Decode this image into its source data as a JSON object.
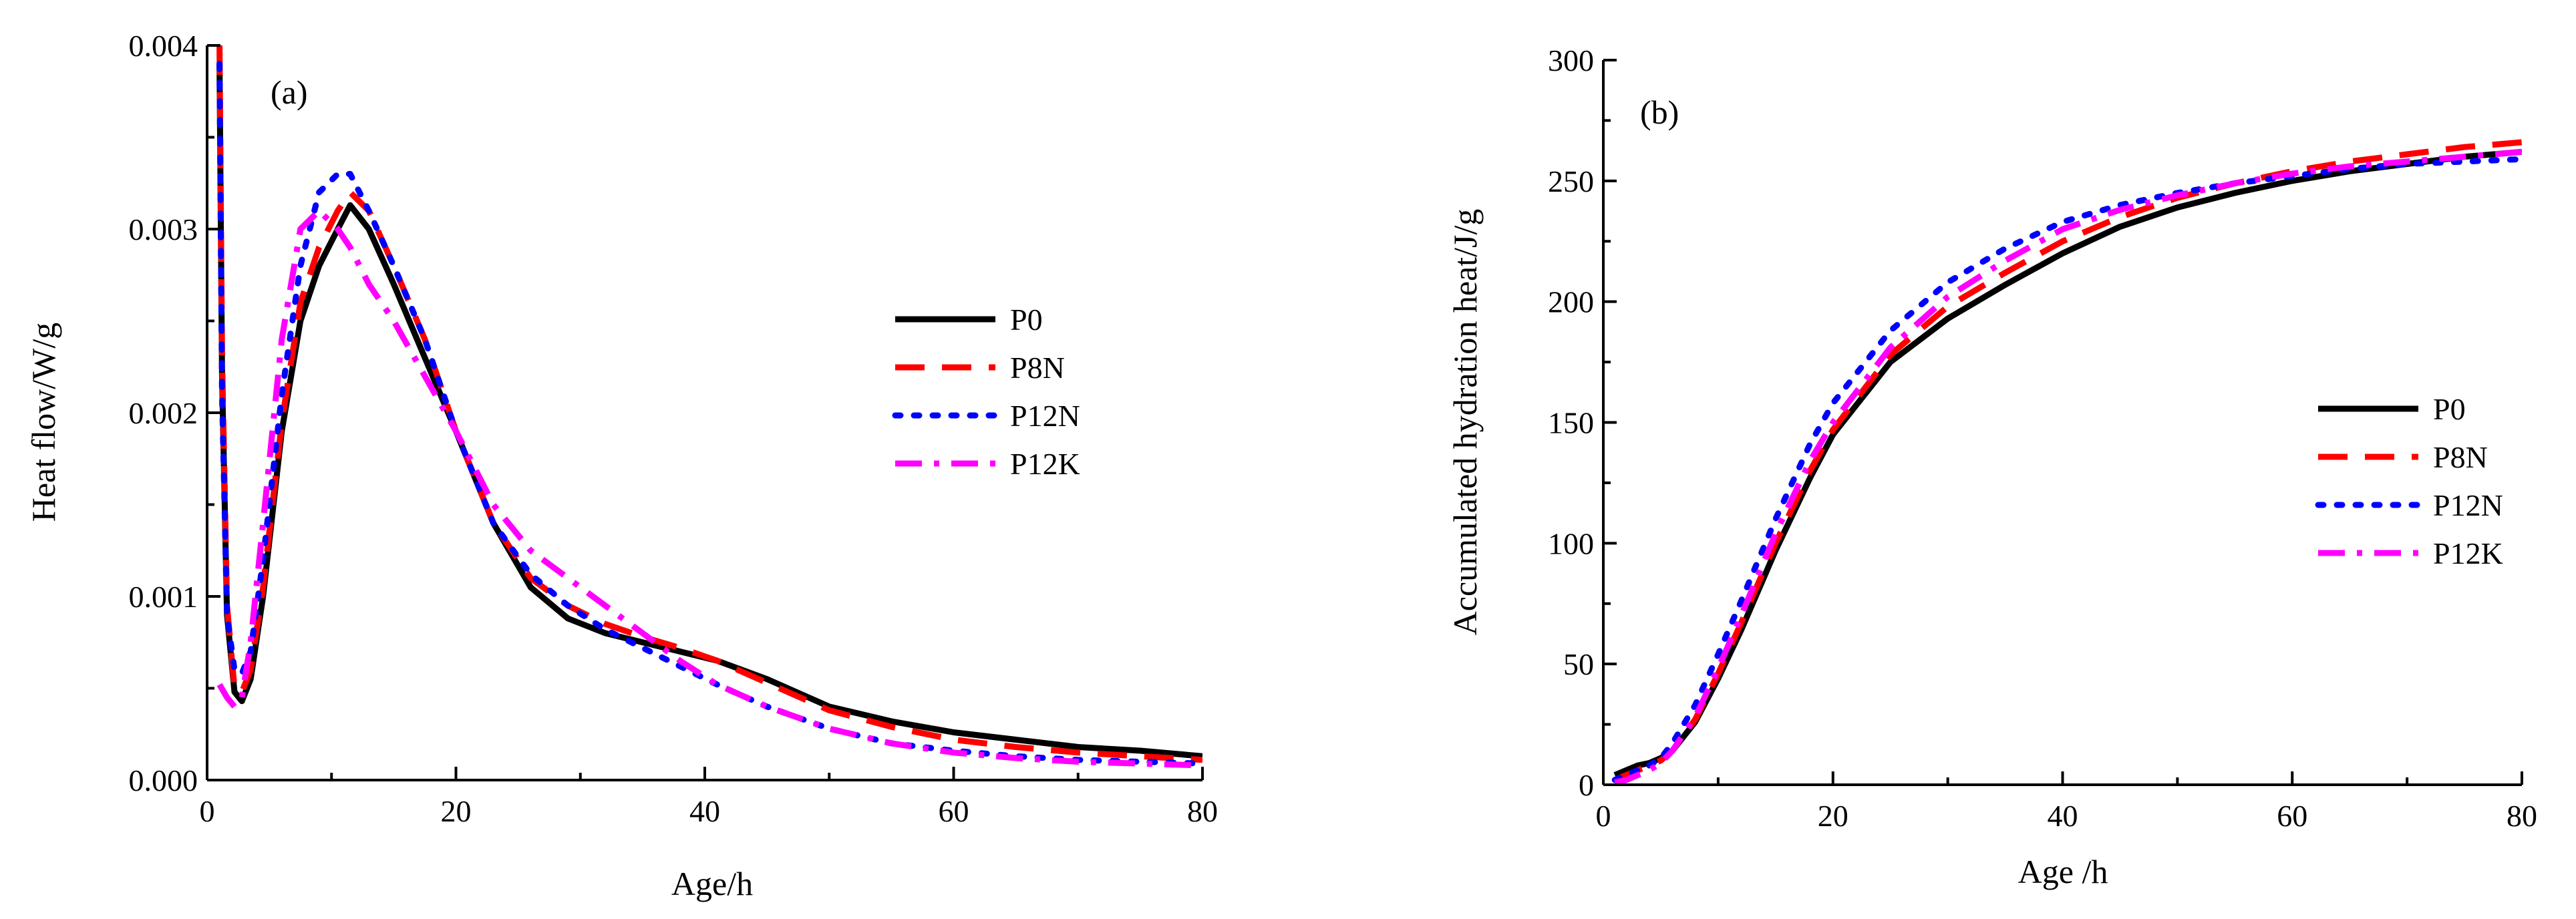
{
  "chart_data": [
    {
      "type": "line",
      "panel_label": "(a)",
      "xlabel": "Age/h",
      "ylabel": "Heat flow/W/g",
      "xlim": [
        0,
        80
      ],
      "ylim": [
        0,
        0.004
      ],
      "xticks": [
        0,
        20,
        40,
        60,
        80
      ],
      "xtick_labels": [
        "0",
        "20",
        "40",
        "60",
        "80"
      ],
      "yticks": [
        0,
        0.001,
        0.002,
        0.003,
        0.004
      ],
      "ytick_labels": [
        "0.000",
        "0.001",
        "0.002",
        "0.003",
        "0.004"
      ],
      "legend_position": "right-center",
      "series": [
        {
          "name": "P0",
          "color": "#000000",
          "style": "solid",
          "x": [
            1,
            1.2,
            1.6,
            2.2,
            2.8,
            3.5,
            4.5,
            6,
            7.5,
            9,
            10.5,
            11.5,
            13,
            15,
            17.5,
            20,
            23,
            26,
            29,
            32,
            35,
            38,
            41,
            45,
            50,
            55,
            60,
            65,
            70,
            75,
            80
          ],
          "y": [
            0.0039,
            0.0022,
            0.0009,
            0.00048,
            0.00043,
            0.00055,
            0.001,
            0.0019,
            0.0025,
            0.0028,
            0.003,
            0.00313,
            0.003,
            0.0027,
            0.0023,
            0.0019,
            0.0014,
            0.00105,
            0.00088,
            0.0008,
            0.00075,
            0.0007,
            0.00065,
            0.00055,
            0.0004,
            0.00032,
            0.00026,
            0.00022,
            0.00018,
            0.00016,
            0.00013
          ]
        },
        {
          "name": "P8N",
          "color": "#ff0000",
          "style": "dashed",
          "x": [
            1,
            1.2,
            1.6,
            2.2,
            2.8,
            3.5,
            4.5,
            6,
            7.5,
            9,
            10.5,
            11.5,
            13,
            15,
            17.5,
            20,
            23,
            26,
            29,
            32,
            35,
            38,
            41,
            45,
            50,
            55,
            60,
            65,
            70,
            75,
            80
          ],
          "y": [
            0.004,
            0.0023,
            0.00095,
            0.0005,
            0.00048,
            0.0006,
            0.00105,
            0.00195,
            0.0026,
            0.0029,
            0.0031,
            0.0032,
            0.0031,
            0.0028,
            0.0024,
            0.0019,
            0.0014,
            0.0011,
            0.00095,
            0.00085,
            0.00078,
            0.00072,
            0.00065,
            0.00053,
            0.00038,
            0.00029,
            0.00022,
            0.00018,
            0.00015,
            0.00013,
            0.00011
          ]
        },
        {
          "name": "P12N",
          "color": "#0000ff",
          "style": "dotted",
          "x": [
            1,
            1.2,
            1.6,
            2.2,
            2.8,
            3.5,
            4.5,
            6,
            7.5,
            9,
            10.5,
            11.5,
            13,
            15,
            17.5,
            20,
            23,
            26,
            29,
            32,
            35,
            38,
            41,
            45,
            50,
            55,
            60,
            65,
            70,
            75,
            80
          ],
          "y": [
            0.0039,
            0.0021,
            0.0009,
            0.0006,
            0.00058,
            0.0007,
            0.0012,
            0.0021,
            0.0028,
            0.0032,
            0.0033,
            0.0033,
            0.0031,
            0.0028,
            0.0024,
            0.0019,
            0.0014,
            0.00112,
            0.00095,
            0.00082,
            0.00072,
            0.00062,
            0.00052,
            0.0004,
            0.00028,
            0.0002,
            0.00016,
            0.00013,
            0.00011,
            0.0001,
            9e-05
          ]
        },
        {
          "name": "P12K",
          "color": "#ff00ff",
          "style": "dashdot",
          "x": [
            1,
            1.6,
            2.2,
            2.8,
            3.5,
            4.5,
            6,
            7.5,
            9,
            10.5,
            11.5,
            13,
            15,
            17.5,
            20,
            23,
            26,
            29,
            32,
            35,
            38,
            41,
            45,
            50,
            55,
            60,
            65,
            70,
            75,
            80
          ],
          "y": [
            0.00052,
            0.00045,
            0.0004,
            0.00045,
            0.00075,
            0.0014,
            0.0024,
            0.003,
            0.0031,
            0.003,
            0.0029,
            0.0027,
            0.0025,
            0.0022,
            0.0019,
            0.0015,
            0.00125,
            0.0011,
            0.00095,
            0.0008,
            0.00065,
            0.00052,
            0.0004,
            0.00028,
            0.0002,
            0.00015,
            0.00012,
            0.0001,
            9e-05,
            8e-05
          ]
        }
      ]
    },
    {
      "type": "line",
      "panel_label": "(b)",
      "xlabel": "Age /h",
      "ylabel": "Accumulated hydration heat/J/g",
      "xlim": [
        0,
        80
      ],
      "ylim": [
        0,
        300
      ],
      "xticks": [
        0,
        20,
        40,
        60,
        80
      ],
      "xtick_labels": [
        "0",
        "20",
        "40",
        "60",
        "80"
      ],
      "yticks": [
        0,
        50,
        100,
        150,
        200,
        250,
        300
      ],
      "ytick_labels": [
        "0",
        "50",
        "100",
        "150",
        "200",
        "250",
        "300"
      ],
      "legend_position": "right-center",
      "series": [
        {
          "name": "P0",
          "color": "#000000",
          "style": "solid",
          "x": [
            1,
            2,
            3,
            4,
            5,
            6,
            8,
            10,
            12,
            15,
            18,
            20,
            25,
            30,
            35,
            40,
            45,
            50,
            55,
            60,
            65,
            70,
            75,
            80
          ],
          "y": [
            4,
            6,
            8,
            9,
            11,
            14,
            26,
            44,
            64,
            97,
            127,
            145,
            175,
            193,
            207,
            220,
            231,
            239,
            245,
            250,
            254,
            257,
            260,
            262
          ]
        },
        {
          "name": "P8N",
          "color": "#ff0000",
          "style": "dashed",
          "x": [
            1,
            2,
            3,
            4,
            5,
            6,
            8,
            10,
            12,
            15,
            18,
            20,
            25,
            30,
            35,
            40,
            45,
            50,
            55,
            60,
            65,
            70,
            75,
            80
          ],
          "y": [
            2,
            4,
            6,
            8,
            10,
            14,
            27,
            46,
            67,
            100,
            130,
            147,
            178,
            198,
            212,
            225,
            235,
            243,
            249,
            254,
            258,
            261,
            264,
            266
          ]
        },
        {
          "name": "P12N",
          "color": "#0000ff",
          "style": "dotted",
          "x": [
            1,
            2,
            3,
            4,
            5,
            6,
            8,
            10,
            12,
            15,
            18,
            20,
            25,
            30,
            35,
            40,
            45,
            50,
            55,
            60,
            65,
            70,
            75,
            80
          ],
          "y": [
            2,
            4,
            6,
            8,
            11,
            17,
            33,
            54,
            76,
            110,
            141,
            158,
            188,
            208,
            222,
            233,
            240,
            245,
            249,
            252,
            255,
            257,
            258,
            259
          ]
        },
        {
          "name": "P12K",
          "color": "#ff00ff",
          "style": "dashdot",
          "x": [
            1,
            2,
            3,
            4,
            5,
            6,
            8,
            10,
            12,
            15,
            18,
            20,
            25,
            30,
            35,
            40,
            45,
            50,
            55,
            60,
            65,
            70,
            75,
            80
          ],
          "y": [
            1,
            2,
            4,
            6,
            9,
            14,
            28,
            48,
            70,
            104,
            134,
            150,
            181,
            202,
            217,
            230,
            238,
            244,
            249,
            253,
            256,
            258,
            260,
            262
          ]
        }
      ]
    }
  ]
}
